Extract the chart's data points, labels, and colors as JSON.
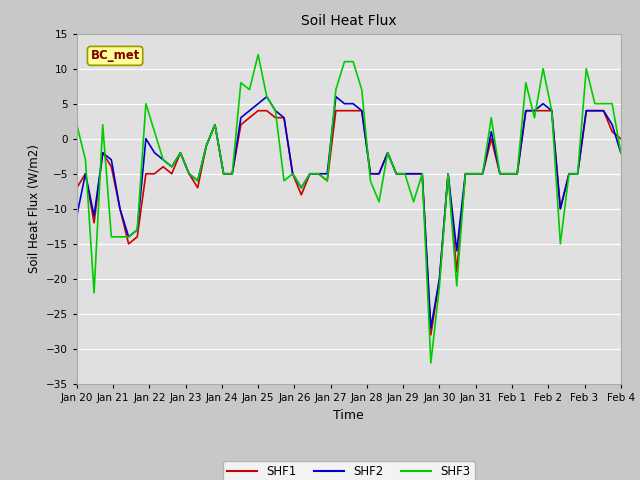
{
  "title": "Soil Heat Flux",
  "xlabel": "Time",
  "ylabel": "Soil Heat Flux (W/m2)",
  "ylim": [
    -35,
    15
  ],
  "yticks": [
    -35,
    -30,
    -25,
    -20,
    -15,
    -10,
    -5,
    0,
    5,
    10,
    15
  ],
  "fig_facecolor": "#c8c8c8",
  "ax_facecolor": "#e0e0e0",
  "line_colors": {
    "SHF1": "#cc0000",
    "SHF2": "#0000cc",
    "SHF3": "#00cc00"
  },
  "legend_label": "BC_met",
  "legend_box_facecolor": "#ffff99",
  "legend_box_edgecolor": "#999900",
  "legend_text_color": "#800000",
  "x_labels": [
    "Jan 20",
    "Jan 21",
    "Jan 22",
    "Jan 23",
    "Jan 24",
    "Jan 25",
    "Jan 26",
    "Jan 27",
    "Jan 28",
    "Jan 29",
    "Jan 30",
    "Jan 31",
    "Feb 1",
    "Feb 2",
    "Feb 3",
    "Feb 4"
  ],
  "shf1": [
    -7,
    -5,
    -12,
    -2,
    -4,
    -10,
    -15,
    -14,
    -5,
    -5,
    -4,
    -5,
    -2,
    -5,
    -7,
    -1,
    2,
    -5,
    -5,
    2,
    3,
    4,
    4,
    3,
    3,
    -5,
    -8,
    -5,
    -5,
    -6,
    4,
    4,
    4,
    4,
    -5,
    -5,
    -2,
    -5,
    -5,
    -5,
    -5,
    -28,
    -20,
    -5,
    -19,
    -5,
    -5,
    -5,
    0,
    -5,
    -5,
    -5,
    4,
    4,
    4,
    4,
    -10,
    -5,
    -5,
    4,
    4,
    4,
    1,
    0
  ],
  "shf2": [
    -11,
    -5,
    -11,
    -2,
    -3,
    -10,
    -14,
    -13,
    0,
    -2,
    -3,
    -4,
    -2,
    -5,
    -6,
    -1,
    2,
    -5,
    -5,
    3,
    4,
    5,
    6,
    4,
    3,
    -5,
    -7,
    -5,
    -5,
    -5,
    6,
    5,
    5,
    4,
    -5,
    -5,
    -2,
    -5,
    -5,
    -5,
    -5,
    -27,
    -20,
    -5,
    -16,
    -5,
    -5,
    -5,
    1,
    -5,
    -5,
    -5,
    4,
    4,
    5,
    4,
    -10,
    -5,
    -5,
    4,
    4,
    4,
    2,
    -2
  ],
  "shf3": [
    2,
    -3,
    -22,
    2,
    -14,
    -14,
    -14,
    -13,
    5,
    1,
    -3,
    -4,
    -2,
    -5,
    -6,
    -1,
    2,
    -5,
    -5,
    8,
    7,
    12,
    6,
    4,
    -6,
    -5,
    -7,
    -5,
    -5,
    -6,
    7,
    11,
    11,
    7,
    -6,
    -9,
    -2,
    -5,
    -5,
    -9,
    -5,
    -32,
    -21,
    -5,
    -21,
    -5,
    -5,
    -5,
    3,
    -5,
    -5,
    -5,
    8,
    3,
    10,
    4,
    -15,
    -5,
    -5,
    10,
    5,
    5,
    5,
    -2
  ]
}
